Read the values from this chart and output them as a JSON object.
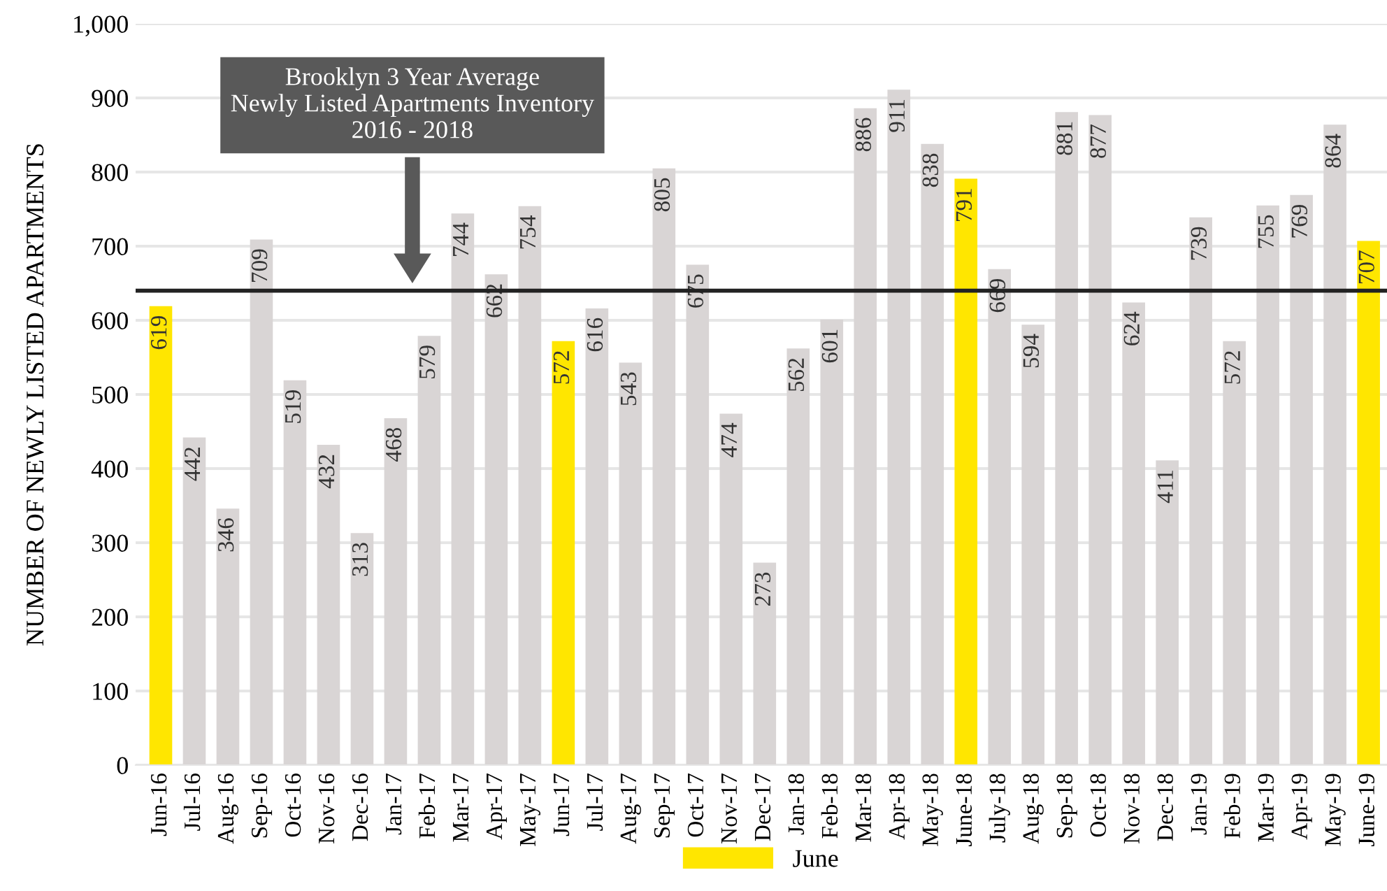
{
  "chart_data": {
    "type": "bar",
    "ylabel": "NUMBER OF NEWLY LISTED APARTMENTS",
    "categories": [
      "Jun-16",
      "Jul-16",
      "Aug-16",
      "Sep-16",
      "Oct-16",
      "Nov-16",
      "Dec-16",
      "Jan-17",
      "Feb-17",
      "Mar-17",
      "Apr-17",
      "May-17",
      "Jun-17",
      "Jul-17",
      "Aug-17",
      "Sep-17",
      "Oct-17",
      "Nov-17",
      "Dec-17",
      "Jan-18",
      "Feb-18",
      "Mar-18",
      "Apr-18",
      "May-18",
      "June-18",
      "July-18",
      "Aug-18",
      "Sep-18",
      "Oct-18",
      "Nov-18",
      "Dec-18",
      "Jan-19",
      "Feb-19",
      "Mar-19",
      "Apr-19",
      "May-19",
      "June-19"
    ],
    "series": [
      {
        "name": "June",
        "color": "#ffe600",
        "values": [
          619,
          null,
          null,
          null,
          null,
          null,
          null,
          null,
          null,
          null,
          null,
          null,
          572,
          null,
          null,
          null,
          null,
          null,
          null,
          null,
          null,
          null,
          null,
          null,
          791,
          null,
          null,
          null,
          null,
          null,
          null,
          null,
          null,
          null,
          null,
          null,
          707
        ]
      },
      {
        "color": "#d9d5d5",
        "values": [
          null,
          442,
          346,
          709,
          519,
          432,
          313,
          468,
          579,
          744,
          662,
          754,
          null,
          616,
          543,
          805,
          675,
          474,
          273,
          562,
          601,
          886,
          911,
          838,
          null,
          669,
          594,
          881,
          877,
          624,
          411,
          739,
          572,
          755,
          769,
          864,
          null
        ]
      }
    ],
    "ylim": [
      0,
      1000
    ],
    "yticks": [
      0,
      100,
      200,
      300,
      400,
      500,
      600,
      700,
      800,
      900,
      {
        "value": 1000,
        "label": "1,000"
      }
    ],
    "grid": "y",
    "data_labels": true,
    "legend": "bottom",
    "ref_lines": [
      {
        "axis": "y",
        "value": 640,
        "color": "#222222",
        "line_style": "solid"
      }
    ],
    "annotations": [
      "Brooklyn 3 Year Average\nNewly Listed Apartments Inventory\n2016 - 2018"
    ]
  }
}
